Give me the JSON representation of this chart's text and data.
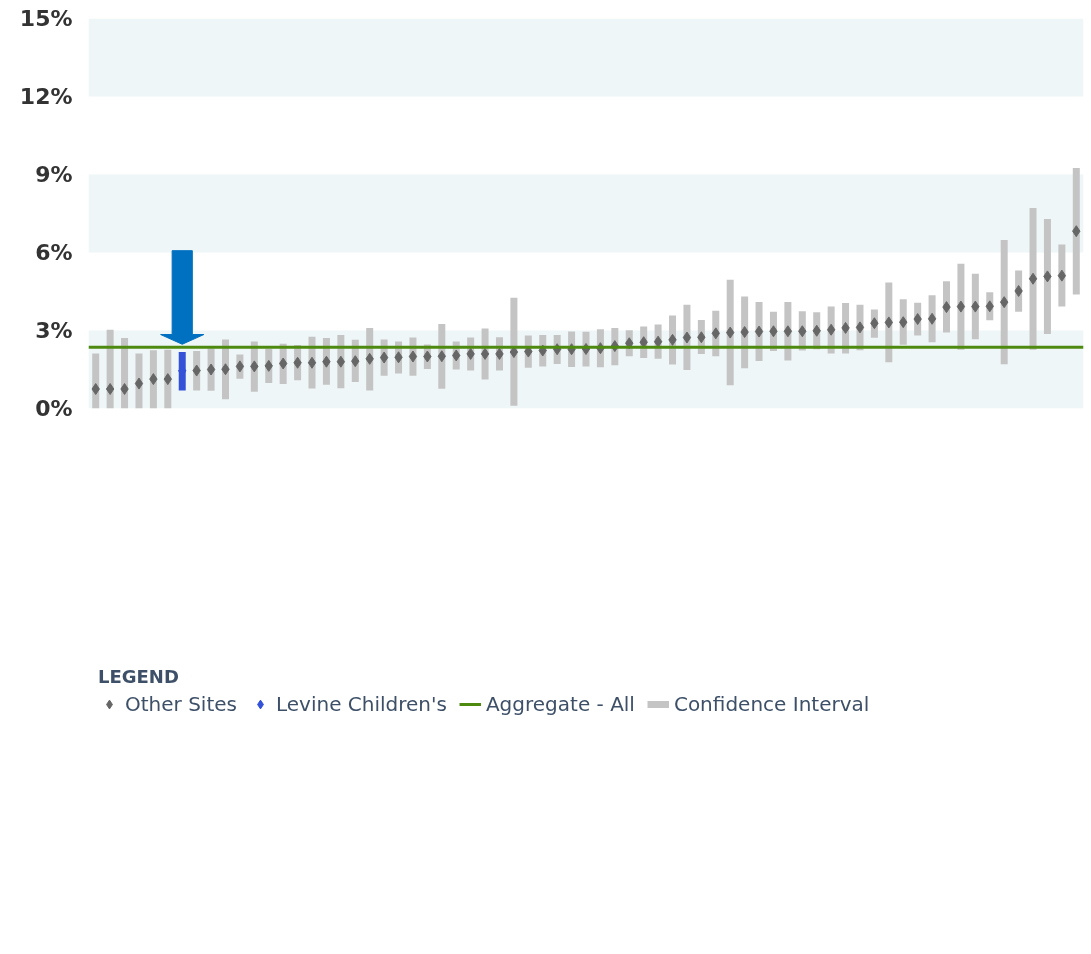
{
  "chart_data": {
    "type": "scatter",
    "marker": "diamond",
    "legend": "bottom",
    "legend_title": "LEGEND",
    "tick_labels": "y",
    "grid": false,
    "categories": [
      null,
      null,
      null,
      null,
      null,
      null,
      null,
      null,
      null,
      null,
      null,
      null,
      null,
      null,
      null,
      null,
      null,
      null,
      null,
      null,
      null,
      null,
      null,
      null,
      null,
      null,
      null,
      null,
      null,
      null,
      null,
      null,
      null,
      null,
      null,
      null,
      null,
      null,
      null,
      null,
      null,
      null,
      null,
      null,
      null,
      null,
      null,
      null,
      null,
      null,
      null,
      null,
      null,
      null,
      null,
      null,
      null,
      null,
      null,
      null,
      null,
      null,
      null,
      null,
      null,
      null,
      null,
      null,
      null
    ],
    "ylim": [
      0,
      15
    ],
    "yticks": [
      {
        "value": 0,
        "label": "0%"
      },
      {
        "value": 3,
        "label": "3%"
      },
      {
        "value": 6,
        "label": "6%"
      },
      {
        "value": 9,
        "label": "9%"
      },
      {
        "value": 12,
        "label": "12%"
      },
      {
        "value": 15,
        "label": "15%"
      }
    ],
    "series": [
      {
        "name": "Other Sites",
        "color": "#666666",
        "values": [
          0.75,
          0.75,
          0.75,
          0.96,
          1.13,
          1.13,
          null,
          1.46,
          1.5,
          1.51,
          1.62,
          1.62,
          1.64,
          1.73,
          1.76,
          1.76,
          1.8,
          1.8,
          1.82,
          1.91,
          1.96,
          1.97,
          2.0,
          2.0,
          2.01,
          2.04,
          2.1,
          2.1,
          2.1,
          2.17,
          2.19,
          2.23,
          2.28,
          2.28,
          2.29,
          2.32,
          2.4,
          2.51,
          2.55,
          2.57,
          2.64,
          2.73,
          2.74,
          2.89,
          2.92,
          2.94,
          2.96,
          2.97,
          2.97,
          2.97,
          2.99,
          3.03,
          3.1,
          3.12,
          3.28,
          3.31,
          3.32,
          3.44,
          3.45,
          3.9,
          3.92,
          3.92,
          3.93,
          4.09,
          4.52,
          4.99,
          5.08,
          5.11,
          6.82
        ],
        "errors": [
          [
            0,
            2.12
          ],
          [
            0,
            3.03
          ],
          [
            0,
            2.71
          ],
          [
            0,
            2.12
          ],
          [
            0,
            2.24
          ],
          [
            0,
            2.26
          ],
          null,
          [
            0.69,
            2.21
          ],
          [
            0.68,
            2.32
          ],
          [
            0.36,
            2.65
          ],
          [
            1.14,
            2.08
          ],
          [
            0.64,
            2.58
          ],
          [
            0.98,
            2.3
          ],
          [
            0.94,
            2.49
          ],
          [
            1.09,
            2.44
          ],
          [
            0.77,
            2.76
          ],
          [
            0.91,
            2.71
          ],
          [
            0.78,
            2.83
          ],
          [
            1.02,
            2.64
          ],
          [
            0.69,
            3.1
          ],
          [
            1.26,
            2.65
          ],
          [
            1.35,
            2.58
          ],
          [
            1.26,
            2.73
          ],
          [
            1.52,
            2.46
          ],
          [
            0.76,
            3.25
          ],
          [
            1.5,
            2.58
          ],
          [
            1.46,
            2.73
          ],
          [
            1.12,
            3.08
          ],
          [
            1.46,
            2.74
          ],
          [
            0.11,
            4.26
          ],
          [
            1.57,
            2.81
          ],
          [
            1.62,
            2.83
          ],
          [
            1.71,
            2.83
          ],
          [
            1.6,
            2.96
          ],
          [
            1.62,
            2.95
          ],
          [
            1.59,
            3.05
          ],
          [
            1.66,
            3.1
          ],
          [
            2.01,
            3.01
          ],
          [
            1.94,
            3.15
          ],
          [
            1.91,
            3.23
          ],
          [
            1.69,
            3.58
          ],
          [
            1.48,
            3.99
          ],
          [
            2.1,
            3.4
          ],
          [
            2.01,
            3.76
          ],
          [
            0.89,
            4.95
          ],
          [
            1.55,
            4.31
          ],
          [
            1.83,
            4.1
          ],
          [
            2.21,
            3.72
          ],
          [
            1.85,
            4.1
          ],
          [
            2.23,
            3.74
          ],
          [
            2.28,
            3.7
          ],
          [
            2.12,
            3.92
          ],
          [
            2.12,
            4.06
          ],
          [
            2.24,
            3.99
          ],
          [
            2.72,
            3.81
          ],
          [
            1.78,
            4.85
          ],
          [
            2.45,
            4.2
          ],
          [
            2.81,
            4.07
          ],
          [
            2.55,
            4.36
          ],
          [
            2.92,
            4.89
          ],
          [
            2.26,
            5.57
          ],
          [
            2.66,
            5.18
          ],
          [
            3.39,
            4.47
          ],
          [
            1.7,
            6.48
          ],
          [
            3.72,
            5.31
          ],
          [
            2.26,
            7.71
          ],
          [
            2.87,
            7.29
          ],
          [
            3.92,
            6.31
          ],
          [
            4.38,
            9.25
          ]
        ]
      },
      {
        "name": "Levine Children's",
        "color": "#3352d8",
        "values": [
          null,
          null,
          null,
          null,
          null,
          null,
          1.45,
          null,
          null,
          null,
          null,
          null,
          null,
          null,
          null,
          null,
          null,
          null,
          null,
          null,
          null,
          null,
          null,
          null,
          null,
          null,
          null,
          null,
          null,
          null,
          null,
          null,
          null,
          null,
          null,
          null,
          null,
          null,
          null,
          null,
          null,
          null,
          null,
          null,
          null,
          null,
          null,
          null,
          null,
          null,
          null,
          null,
          null,
          null,
          null,
          null,
          null,
          null,
          null,
          null,
          null,
          null,
          null,
          null,
          null,
          null,
          null,
          null,
          null
        ],
        "errors": [
          null,
          null,
          null,
          null,
          null,
          null,
          [
            0.69,
            2.17
          ],
          null,
          null,
          null,
          null,
          null,
          null,
          null,
          null,
          null,
          null,
          null,
          null,
          null,
          null,
          null,
          null,
          null,
          null,
          null,
          null,
          null,
          null,
          null,
          null,
          null,
          null,
          null,
          null,
          null,
          null,
          null,
          null,
          null,
          null,
          null,
          null,
          null,
          null,
          null,
          null,
          null,
          null,
          null,
          null,
          null,
          null,
          null,
          null,
          null,
          null,
          null,
          null,
          null,
          null,
          null,
          null,
          null,
          null,
          null,
          null,
          null,
          null
        ]
      }
    ],
    "ref_lines": [
      {
        "axis": "y",
        "value": 2.36,
        "label": "Aggregate - All",
        "color": "#4e8a10"
      }
    ],
    "bands": [
      {
        "axis": "y",
        "from": 0,
        "to": 3,
        "color": "#eef6f7"
      },
      {
        "axis": "y",
        "from": 6,
        "to": 9,
        "color": "#eef6f7"
      },
      {
        "axis": "y",
        "from": 12,
        "to": 15,
        "color": "#eef6f7"
      }
    ],
    "annotations": [
      "Confidence Interval"
    ]
  }
}
